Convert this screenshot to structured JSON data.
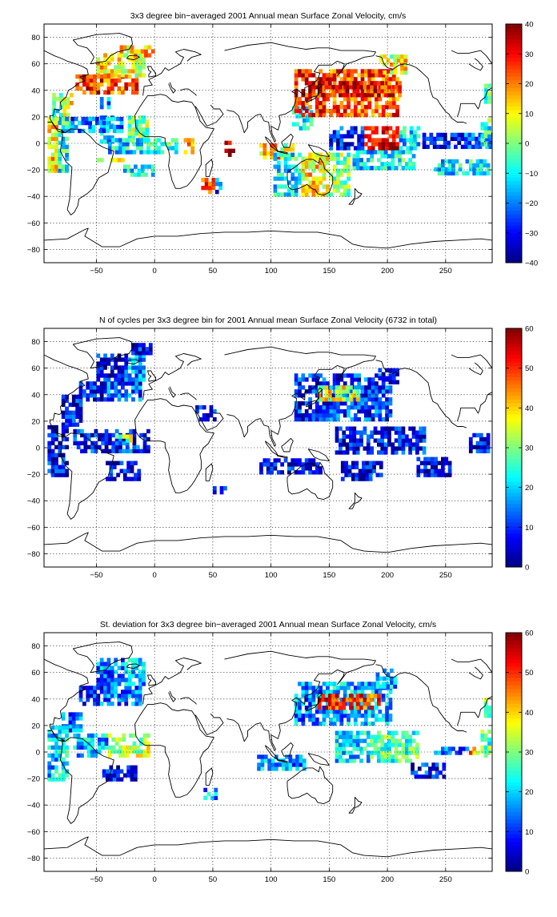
{
  "chart_data": [
    {
      "type": "heatmap",
      "title": "3x3 degree bin−averaged 2001 Annual mean Surface Zonal Velocity, cm/s",
      "xlim": [
        -95,
        290
      ],
      "ylim": [
        -90,
        90
      ],
      "xticks": [
        -50,
        0,
        50,
        100,
        150,
        200,
        250
      ],
      "yticks": [
        -80,
        -60,
        -40,
        -20,
        0,
        20,
        40,
        60,
        80
      ],
      "grid": true,
      "colorbar": {
        "range": [
          -40,
          40
        ],
        "ticks": [
          -40,
          -30,
          -20,
          -10,
          0,
          10,
          20,
          30,
          40
        ]
      },
      "bins": [
        [
          -47,
          26,
          35,
          [
            [
              0,
              3,
              0.3
            ]
          ]
        ],
        [
          -47,
          0,
          20,
          [
            [
              0,
              4,
              0.3
            ],
            [
              8,
              14,
              0.5
            ]
          ]
        ],
        [
          -50,
          -14,
          -11,
          [
            [
              0,
              4,
              0.55
            ],
            [
              4,
              8,
              0.7
            ]
          ]
        ],
        [
          -88,
          17,
          38,
          [
            [
              0,
              3,
              0.4
            ],
            [
              3,
              6,
              0.6
            ]
          ]
        ],
        [
          -68,
          37,
          50,
          [
            [
              0,
              8,
              0.85
            ],
            [
              8,
              18,
              0.8
            ]
          ]
        ],
        [
          -50,
          50,
          66,
          [
            [
              0,
              8,
              0.65
            ],
            [
              8,
              14,
              0.6
            ]
          ]
        ],
        [
          -30,
          65,
          74,
          [
            [
              0,
              6,
              0.65
            ],
            [
              6,
              10,
              0.7
            ]
          ]
        ],
        [
          -75,
          8,
          18,
          [
            [
              0,
              16,
              0.25
            ]
          ]
        ],
        [
          -40,
          -8,
          4,
          [
            [
              0,
              10,
              0.35
            ],
            [
              10,
              20,
              0.4
            ]
          ]
        ],
        [
          -30,
          -25,
          -16,
          [
            [
              0,
              10,
              0.35
            ]
          ]
        ],
        [
          25,
          -8,
          2,
          [
            [
              0,
              3,
              0.75
            ]
          ]
        ],
        [
          40,
          -38,
          -28,
          [
            [
              0,
              4,
              0.85
            ],
            [
              4,
              6,
              0.2
            ]
          ]
        ],
        [
          60,
          -10,
          2,
          [
            [
              0,
              3,
              0.95
            ]
          ]
        ],
        [
          90,
          -12,
          0,
          [
            [
              0,
              6,
              0.7
            ],
            [
              6,
              10,
              0.55
            ]
          ]
        ],
        [
          102,
          -40,
          -8,
          [
            [
              0,
              8,
              0.35
            ],
            [
              8,
              16,
              0.65
            ],
            [
              16,
              22,
              0.5
            ]
          ]
        ],
        [
          118,
          10,
          26,
          [
            [
              0,
              6,
              0.35
            ]
          ]
        ],
        [
          120,
          20,
          55,
          [
            [
              0,
              10,
              0.85
            ],
            [
              10,
              30,
              0.8
            ]
          ]
        ],
        [
          140,
          35,
          45,
          [
            [
              0,
              14,
              0.9
            ],
            [
              14,
              24,
              0.85
            ]
          ]
        ],
        [
          170,
          -20,
          -5,
          [
            [
              0,
              12,
              0.35
            ],
            [
              12,
              18,
              0.4
            ]
          ]
        ],
        [
          150,
          -5,
          12,
          [
            [
              0,
              10,
              0.15
            ],
            [
              10,
              20,
              0.9
            ],
            [
              20,
              26,
              0.35
            ]
          ]
        ],
        [
          230,
          -4,
          6,
          [
            [
              0,
              12,
              0.1
            ],
            [
              12,
              20,
              0.25
            ]
          ]
        ],
        [
          240,
          -24,
          -14,
          [
            [
              0,
              10,
              0.35
            ],
            [
              10,
              18,
              0.4
            ]
          ]
        ],
        [
          280,
          -2,
          18,
          [
            [
              0,
              4,
              0.4
            ],
            [
              4,
              6,
              0.3
            ]
          ]
        ],
        [
          -92,
          -22,
          20,
          [
            [
              0,
              3,
              0.65
            ],
            [
              3,
              6,
              0.4
            ]
          ]
        ],
        [
          283,
          30,
          45,
          [
            [
              0,
              4,
              0.4
            ],
            [
              4,
              8,
              0.35
            ]
          ]
        ],
        [
          193,
          52,
          65,
          [
            [
              0,
              6,
              0.6
            ],
            [
              6,
              8,
              0.65
            ]
          ]
        ]
      ]
    },
    {
      "type": "heatmap",
      "title": "N of cycles per 3x3 degree bin for 2001 Annual mean Surface Zonal Velocity (6732 in total)",
      "xlim": [
        -95,
        290
      ],
      "ylim": [
        -90,
        90
      ],
      "xticks": [
        -50,
        0,
        50,
        100,
        150,
        200,
        250
      ],
      "yticks": [
        -80,
        -60,
        -40,
        -20,
        0,
        20,
        40,
        60,
        80
      ],
      "grid": true,
      "colorbar": {
        "range": [
          0,
          60
        ],
        "ticks": [
          0,
          10,
          20,
          30,
          40,
          50,
          60
        ]
      },
      "bins": [
        [
          -80,
          16,
          40,
          [
            [
              0,
              6,
              0.12
            ]
          ]
        ],
        [
          -65,
          35,
          50,
          [
            [
              0,
              8,
              0.12
            ],
            [
              8,
              18,
              0.2
            ]
          ]
        ],
        [
          -50,
          50,
          70,
          [
            [
              0,
              8,
              0.1
            ],
            [
              8,
              14,
              0.25
            ]
          ]
        ],
        [
          -20,
          70,
          78,
          [
            [
              0,
              6,
              0.12
            ]
          ]
        ],
        [
          -70,
          -4,
          14,
          [
            [
              0,
              10,
              0.15
            ],
            [
              10,
              22,
              0.15
            ]
          ]
        ],
        [
          -42,
          -25,
          -10,
          [
            [
              0,
              10,
              0.1
            ]
          ]
        ],
        [
          -92,
          -22,
          16,
          [
            [
              0,
              3,
              0.12
            ],
            [
              3,
              6,
              0.1
            ]
          ]
        ],
        [
          -34,
          4,
          10,
          [
            [
              0,
              4,
              0.45
            ],
            [
              4,
              6,
              0.55
            ]
          ]
        ],
        [
          50,
          -35,
          -30,
          [
            [
              0,
              4,
              0.12
            ]
          ]
        ],
        [
          120,
          20,
          55,
          [
            [
              0,
              10,
              0.15
            ],
            [
              10,
              28,
              0.18
            ]
          ]
        ],
        [
          140,
          35,
          45,
          [
            [
              0,
              8,
              0.6
            ],
            [
              8,
              12,
              0.55
            ]
          ]
        ],
        [
          90,
          -20,
          -10,
          [
            [
              0,
              12,
              0.12
            ],
            [
              12,
              18,
              0.15
            ]
          ]
        ],
        [
          155,
          -5,
          15,
          [
            [
              0,
              10,
              0.1
            ],
            [
              10,
              26,
              0.12
            ]
          ]
        ],
        [
          160,
          -25,
          -10,
          [
            [
              0,
              12,
              0.1
            ]
          ]
        ],
        [
          225,
          -22,
          -8,
          [
            [
              0,
              10,
              0.12
            ]
          ]
        ],
        [
          270,
          -4,
          10,
          [
            [
              0,
              6,
              0.12
            ]
          ]
        ],
        [
          192,
          48,
          58,
          [
            [
              0,
              6,
              0.12
            ]
          ]
        ],
        [
          35,
          20,
          30,
          [
            [
              0,
              6,
              0.12
            ]
          ]
        ]
      ]
    },
    {
      "type": "heatmap",
      "title": "St. deviation for 3x3 degree bin−averaged 2001 Annual mean Surface Zonal Velocity, cm/s",
      "xlim": [
        -95,
        290
      ],
      "ylim": [
        -90,
        90
      ],
      "xticks": [
        -50,
        0,
        50,
        100,
        150,
        200,
        250
      ],
      "yticks": [
        -80,
        -60,
        -40,
        -20,
        0,
        20,
        40,
        60,
        80
      ],
      "grid": true,
      "colorbar": {
        "range": [
          0,
          60
        ],
        "ticks": [
          0,
          10,
          20,
          30,
          40,
          50,
          60
        ]
      },
      "bins": [
        [
          -80,
          15,
          30,
          [
            [
              0,
              6,
              0.2
            ]
          ]
        ],
        [
          -65,
          35,
          50,
          [
            [
              0,
              8,
              0.2
            ],
            [
              8,
              18,
              0.25
            ]
          ]
        ],
        [
          -50,
          50,
          70,
          [
            [
              0,
              8,
              0.25
            ],
            [
              8,
              14,
              0.3
            ]
          ]
        ],
        [
          -70,
          -4,
          14,
          [
            [
              0,
              10,
              0.3
            ],
            [
              10,
              22,
              0.55
            ]
          ]
        ],
        [
          -45,
          -22,
          -10,
          [
            [
              0,
              10,
              0.12
            ]
          ]
        ],
        [
          -92,
          -22,
          18,
          [
            [
              0,
              3,
              0.3
            ],
            [
              3,
              6,
              0.35
            ]
          ]
        ],
        [
          42,
          -36,
          -28,
          [
            [
              0,
              4,
              0.3
            ]
          ]
        ],
        [
          88,
          -14,
          -2,
          [
            [
              0,
              8,
              0.3
            ],
            [
              8,
              14,
              0.25
            ]
          ]
        ],
        [
          120,
          20,
          52,
          [
            [
              0,
              10,
              0.25
            ],
            [
              10,
              28,
              0.3
            ]
          ]
        ],
        [
          140,
          32,
          42,
          [
            [
              0,
              10,
              0.85
            ],
            [
              10,
              18,
              0.8
            ]
          ]
        ],
        [
          155,
          -8,
          14,
          [
            [
              0,
              10,
              0.35
            ],
            [
              10,
              24,
              0.45
            ]
          ]
        ],
        [
          220,
          -20,
          -8,
          [
            [
              0,
              10,
              0.15
            ]
          ]
        ],
        [
          240,
          -2,
          4,
          [
            [
              0,
              10,
              0.25
            ],
            [
              10,
              18,
              0.7
            ]
          ]
        ],
        [
          280,
          -4,
          16,
          [
            [
              0,
              4,
              0.45
            ],
            [
              4,
              6,
              0.5
            ]
          ]
        ],
        [
          190,
          48,
          62,
          [
            [
              0,
              6,
              0.3
            ]
          ]
        ],
        [
          283,
          26,
          40,
          [
            [
              0,
              4,
              0.5
            ]
          ]
        ]
      ]
    }
  ]
}
